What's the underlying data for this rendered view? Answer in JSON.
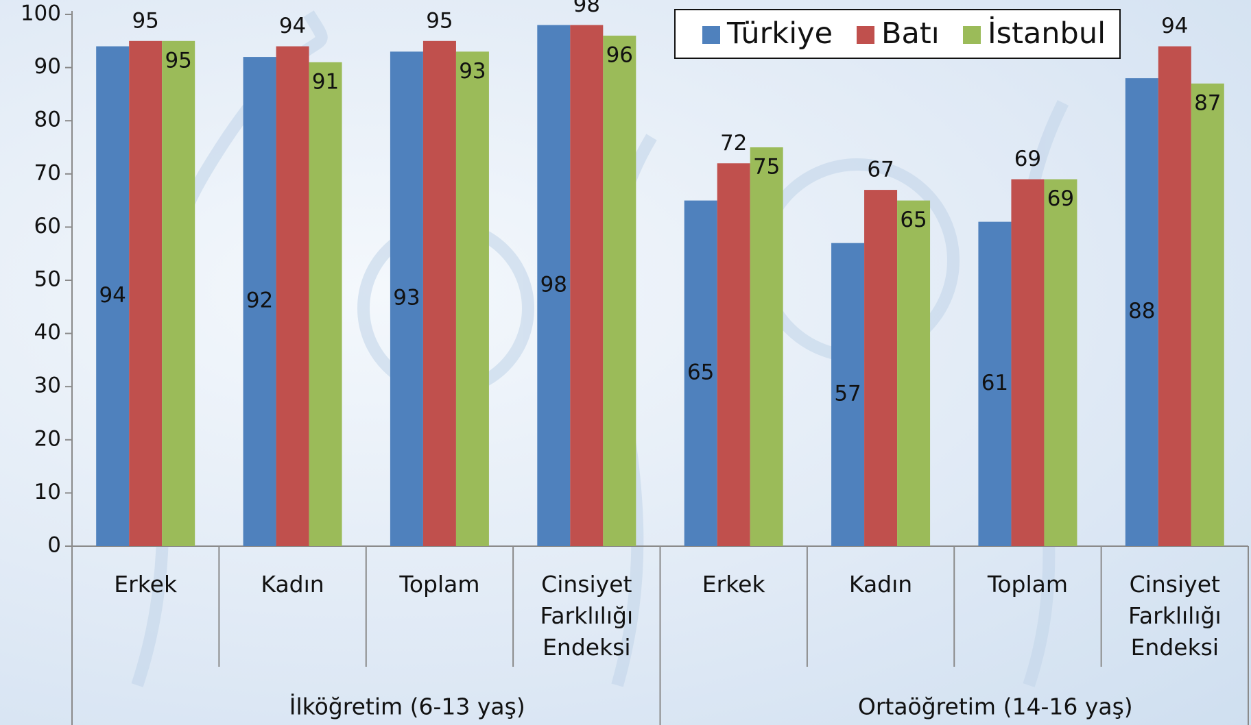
{
  "chart_data": {
    "type": "bar",
    "categories": [
      "Erkek",
      "Kadın",
      "Toplam",
      "Cinsiyet Farklılığı Endeksi",
      "Erkek",
      "Kadın",
      "Toplam",
      "Cinsiyet Farklılığı Endeksi"
    ],
    "groups": [
      "İlköğretim (6-13 yaş)",
      "Ortaöğretim (14-16 yaş)"
    ],
    "series": [
      {
        "name": "Türkiye",
        "color": "#4f81bd",
        "values": [
          94,
          92,
          93,
          98,
          65,
          57,
          61,
          88
        ]
      },
      {
        "name": "Batı",
        "color": "#c0504d",
        "values": [
          95,
          94,
          95,
          98,
          72,
          67,
          69,
          94
        ]
      },
      {
        "name": "İstanbul",
        "color": "#9bbb59",
        "values": [
          95,
          91,
          93,
          96,
          75,
          65,
          69,
          87
        ]
      }
    ],
    "ylim": [
      0,
      100
    ],
    "yticks": [
      0,
      10,
      20,
      30,
      40,
      50,
      60,
      70,
      80,
      90,
      100
    ],
    "grid": false,
    "legend": "top-right"
  }
}
